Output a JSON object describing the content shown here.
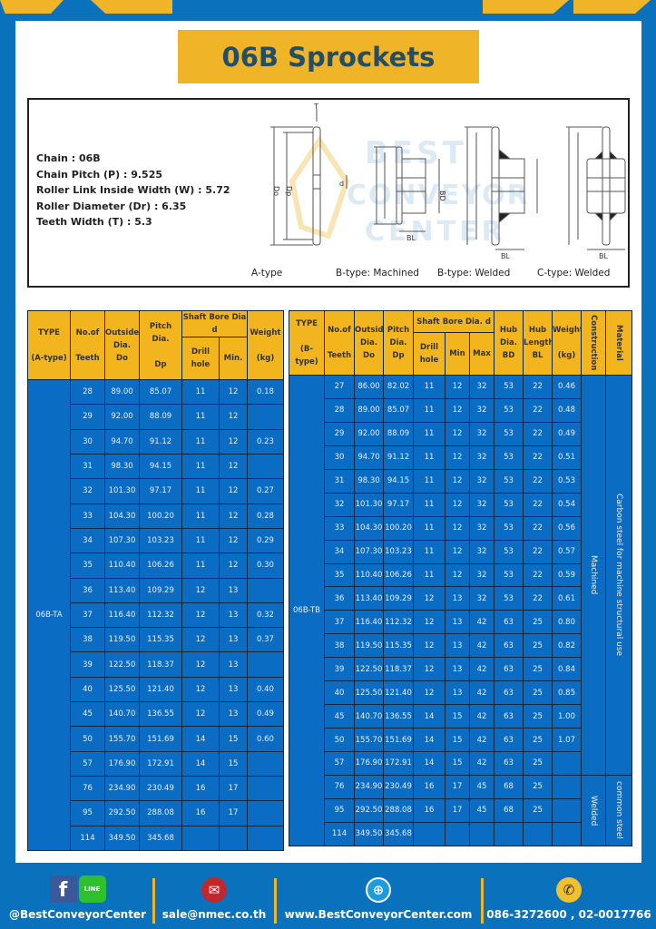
{
  "title": "06B Sprockets",
  "specs": [
    "Chain : 06B",
    "Chain Pitch (P) : 9.525",
    "Roller Link Inside Width (W) : 5.72",
    "Roller Diameter (Dr) : 6.35",
    "Teeth Width (T) : 5.3"
  ],
  "diagrams": {
    "captions": [
      "A-type",
      "B-type: Machined",
      "B-type: Welded",
      "C-type: Welded"
    ],
    "labels": {
      "t": "T",
      "do": "Do",
      "dp": "Dp",
      "d": "d",
      "bd": "BD",
      "bl": "BL"
    },
    "watermark": "BEST CONVEYOR CENTER"
  },
  "table_a": {
    "headers": {
      "type": "TYPE",
      "type2": "(A-type)",
      "teeth": "No.of",
      "teeth2": "Teeth",
      "do": "Outside",
      "do2": "Dia.",
      "do3": "Do",
      "dp": "Pitch Dia.",
      "dp2": "Dp",
      "bore": "Shaft Bore Dia d",
      "drill": "Drill hole",
      "min": "Min.",
      "weight": "Weight",
      "weight2": "(kg)"
    },
    "type_value": "06B-TA",
    "rows": [
      [
        "28",
        "89.00",
        "85.07",
        "11",
        "12",
        "0.18"
      ],
      [
        "29",
        "92.00",
        "88.09",
        "11",
        "12",
        ""
      ],
      [
        "30",
        "94.70",
        "91.12",
        "11",
        "12",
        "0.23"
      ],
      [
        "31",
        "98.30",
        "94.15",
        "11",
        "12",
        ""
      ],
      [
        "32",
        "101.30",
        "97.17",
        "11",
        "12",
        "0.27"
      ],
      [
        "33",
        "104.30",
        "100.20",
        "11",
        "12",
        "0.28"
      ],
      [
        "34",
        "107.30",
        "103.23",
        "11",
        "12",
        "0.29"
      ],
      [
        "35",
        "110.40",
        "106.26",
        "11",
        "12",
        "0.30"
      ],
      [
        "36",
        "113.40",
        "109.29",
        "12",
        "13",
        ""
      ],
      [
        "37",
        "116.40",
        "112.32",
        "12",
        "13",
        "0.32"
      ],
      [
        "38",
        "119.50",
        "115.35",
        "12",
        "13",
        "0.37"
      ],
      [
        "39",
        "122.50",
        "118.37",
        "12",
        "13",
        ""
      ],
      [
        "40",
        "125.50",
        "121.40",
        "12",
        "13",
        "0.40"
      ],
      [
        "45",
        "140.70",
        "136.55",
        "12",
        "13",
        "0.49"
      ],
      [
        "50",
        "155.70",
        "151.69",
        "14",
        "15",
        "0.60"
      ],
      [
        "57",
        "176.90",
        "172.91",
        "14",
        "15",
        ""
      ],
      [
        "76",
        "234.90",
        "230.49",
        "16",
        "17",
        ""
      ],
      [
        "95",
        "292.50",
        "288.08",
        "16",
        "17",
        ""
      ],
      [
        "114",
        "349.50",
        "345.68",
        "",
        "",
        ""
      ]
    ]
  },
  "table_b": {
    "headers": {
      "type": "TYPE",
      "type2": "(B-type)",
      "teeth": "No.of",
      "teeth2": "Teeth",
      "do": "Outside",
      "do2": "Dia.",
      "do3": "Do",
      "dp": "Pitch",
      "dp2": "Dia.",
      "dp3": "Dp",
      "bore": "Shaft Bore Dia. d",
      "drill": "Drill hole",
      "min": "Min",
      "max": "Max",
      "bd": "Hub",
      "bd2": "Dia.",
      "bd3": "BD",
      "bl": "Hub",
      "bl2": "Length",
      "bl3": "BL",
      "weight": "Weight",
      "weight2": "(kg)",
      "construction": "Construction",
      "material": "Material"
    },
    "type_value": "06B-TB",
    "construction": [
      "Machined",
      "Welded"
    ],
    "material": [
      "Carbon steel for machine structural use",
      "common steel"
    ],
    "rows": [
      [
        "27",
        "86.00",
        "82.02",
        "11",
        "12",
        "32",
        "53",
        "22",
        "0.46"
      ],
      [
        "28",
        "89.00",
        "85.07",
        "11",
        "12",
        "32",
        "53",
        "22",
        "0.48"
      ],
      [
        "29",
        "92.00",
        "88.09",
        "11",
        "12",
        "32",
        "53",
        "22",
        "0.49"
      ],
      [
        "30",
        "94.70",
        "91.12",
        "11",
        "12",
        "32",
        "53",
        "22",
        "0.51"
      ],
      [
        "31",
        "98.30",
        "94.15",
        "11",
        "12",
        "32",
        "53",
        "22",
        "0.53"
      ],
      [
        "32",
        "101.30",
        "97.17",
        "11",
        "12",
        "32",
        "53",
        "22",
        "0.54"
      ],
      [
        "33",
        "104.30",
        "100.20",
        "11",
        "12",
        "32",
        "53",
        "22",
        "0.56"
      ],
      [
        "34",
        "107.30",
        "103.23",
        "11",
        "12",
        "32",
        "53",
        "22",
        "0.57"
      ],
      [
        "35",
        "110.40",
        "106.26",
        "11",
        "12",
        "32",
        "53",
        "22",
        "0.59"
      ],
      [
        "36",
        "113.40",
        "109.29",
        "12",
        "13",
        "32",
        "53",
        "22",
        "0.61"
      ],
      [
        "37",
        "116.40",
        "112.32",
        "12",
        "13",
        "42",
        "63",
        "25",
        "0.80"
      ],
      [
        "38",
        "119.50",
        "115.35",
        "12",
        "13",
        "42",
        "63",
        "25",
        "0.82"
      ],
      [
        "39",
        "122.50",
        "118.37",
        "12",
        "13",
        "42",
        "63",
        "25",
        "0.84"
      ],
      [
        "40",
        "125.50",
        "121.40",
        "12",
        "13",
        "42",
        "63",
        "25",
        "0.85"
      ],
      [
        "45",
        "140.70",
        "136.55",
        "14",
        "15",
        "42",
        "63",
        "25",
        "1.00"
      ],
      [
        "50",
        "155.70",
        "151.69",
        "14",
        "15",
        "42",
        "63",
        "25",
        "1.07"
      ],
      [
        "57",
        "176.90",
        "172.91",
        "14",
        "15",
        "42",
        "63",
        "25",
        ""
      ],
      [
        "76",
        "234.90",
        "230.49",
        "16",
        "17",
        "45",
        "68",
        "25",
        ""
      ],
      [
        "95",
        "292.50",
        "288.08",
        "16",
        "17",
        "45",
        "68",
        "25",
        ""
      ],
      [
        "114",
        "349.50",
        "345.68",
        "",
        "",
        "",
        "",
        "",
        ""
      ]
    ]
  },
  "footer": {
    "social": "@BestConveyorCenter",
    "email": "sale@nmec.co.th",
    "website": "www.BestConveyorCenter.com",
    "phone": "086-3272600 , 02-0017766",
    "line_label": "LINE"
  },
  "colors": {
    "brand_blue": "#0a72bd",
    "accent_yellow": "#f0b429",
    "cell_blue": "#0b6cc4"
  }
}
